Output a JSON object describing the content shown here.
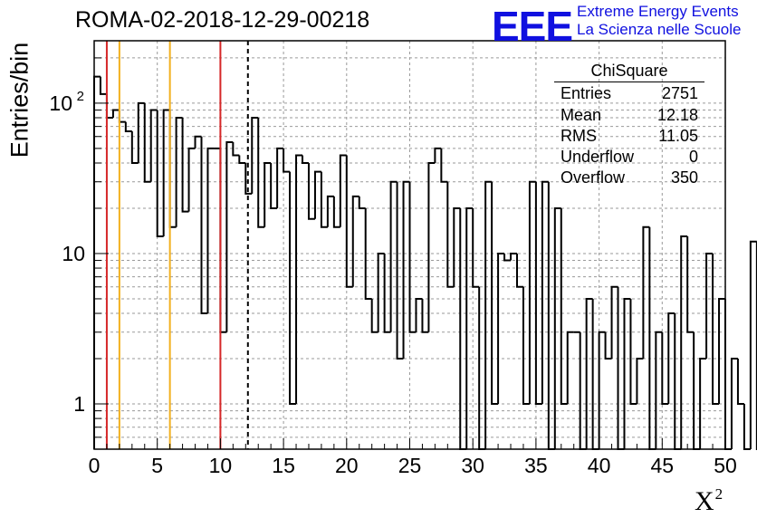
{
  "title": "ROMA-02-2018-12-29-00218",
  "logo": {
    "mark": "EEE",
    "line1": "Extreme Energy Events",
    "line2": "La Scienza nelle Scuole",
    "color": "#1010e0"
  },
  "stats_box": {
    "title": "ChiSquare",
    "rows": [
      {
        "label": "Entries",
        "value": "2751"
      },
      {
        "label": "Mean",
        "value": "12.18"
      },
      {
        "label": "RMS",
        "value": "11.05"
      },
      {
        "label": "Underflow",
        "value": "0"
      },
      {
        "label": "Overflow",
        "value": "350"
      }
    ]
  },
  "chart_data": {
    "type": "bar",
    "histogram_style": "step",
    "xlabel": "X",
    "xlabel_superscript": "2",
    "ylabel": "Entries/bin",
    "xlim": [
      0,
      50
    ],
    "ylim": [
      0.5,
      260
    ],
    "yscale": "log",
    "grid": true,
    "x_ticks": [
      0,
      5,
      10,
      15,
      20,
      25,
      30,
      35,
      40,
      45,
      50
    ],
    "y_ticks": [
      {
        "value": 1,
        "label": "1"
      },
      {
        "value": 10,
        "label": "10"
      },
      {
        "value": 100,
        "label": "10",
        "exponent": "2"
      }
    ],
    "bin_width": 0.5,
    "values": [
      150,
      115,
      80,
      90,
      75,
      65,
      40,
      100,
      30,
      90,
      13,
      90,
      15,
      80,
      19,
      50,
      60,
      4,
      50,
      50,
      3,
      55,
      45,
      40,
      25,
      80,
      15,
      40,
      20,
      50,
      35,
      1,
      45,
      40,
      17,
      35,
      15,
      24,
      15,
      45,
      6,
      24,
      20,
      5,
      3,
      10,
      3,
      30,
      2,
      30,
      3,
      5,
      3,
      40,
      50,
      30,
      6,
      20,
      0.4,
      20,
      6,
      0.4,
      30,
      1,
      10,
      9,
      10,
      6,
      1,
      30,
      1,
      30,
      0.4,
      20,
      1,
      3,
      3,
      0.4,
      5,
      0.4,
      3,
      2,
      6,
      0.4,
      5,
      1,
      2,
      15,
      0.4,
      3,
      1,
      4,
      0.4,
      13,
      3,
      0.4,
      2,
      10,
      1,
      5,
      0.4,
      2,
      1,
      0.4,
      12,
      0.4,
      2,
      1,
      2,
      20,
      1,
      9,
      0.4,
      1,
      1,
      1,
      1,
      1,
      1,
      1,
      1,
      1,
      1,
      7,
      2
    ],
    "reference_lines": [
      {
        "x": 1,
        "color": "#d62728",
        "style": "solid"
      },
      {
        "x": 2,
        "color": "#f2b01e",
        "style": "solid"
      },
      {
        "x": 6,
        "color": "#f2b01e",
        "style": "solid"
      },
      {
        "x": 10,
        "color": "#d62728",
        "style": "solid"
      },
      {
        "x": 12.18,
        "color": "#000000",
        "style": "dashed"
      }
    ]
  }
}
